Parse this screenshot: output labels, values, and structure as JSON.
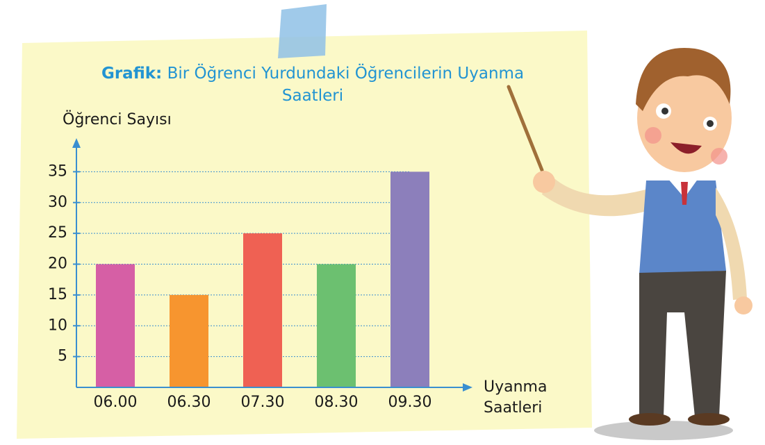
{
  "chart_data": {
    "type": "bar",
    "title_prefix": "Grafik:",
    "title": "Bir Öğrenci Yurdundaki Öğrencilerin Uyanma Saatleri",
    "ylabel": "Öğrenci Sayısı",
    "xlabel": "Uyanma Saatleri",
    "categories": [
      "06.00",
      "06.30",
      "07.30",
      "08.30",
      "09.30"
    ],
    "values": [
      20,
      15,
      25,
      20,
      35
    ],
    "colors": [
      "#d65fa5",
      "#f7952f",
      "#ef6153",
      "#6cc070",
      "#8c7fbb"
    ],
    "ylim": [
      0,
      40
    ],
    "yticks": [
      5,
      10,
      15,
      20,
      25,
      30,
      35
    ],
    "grid": true
  }
}
